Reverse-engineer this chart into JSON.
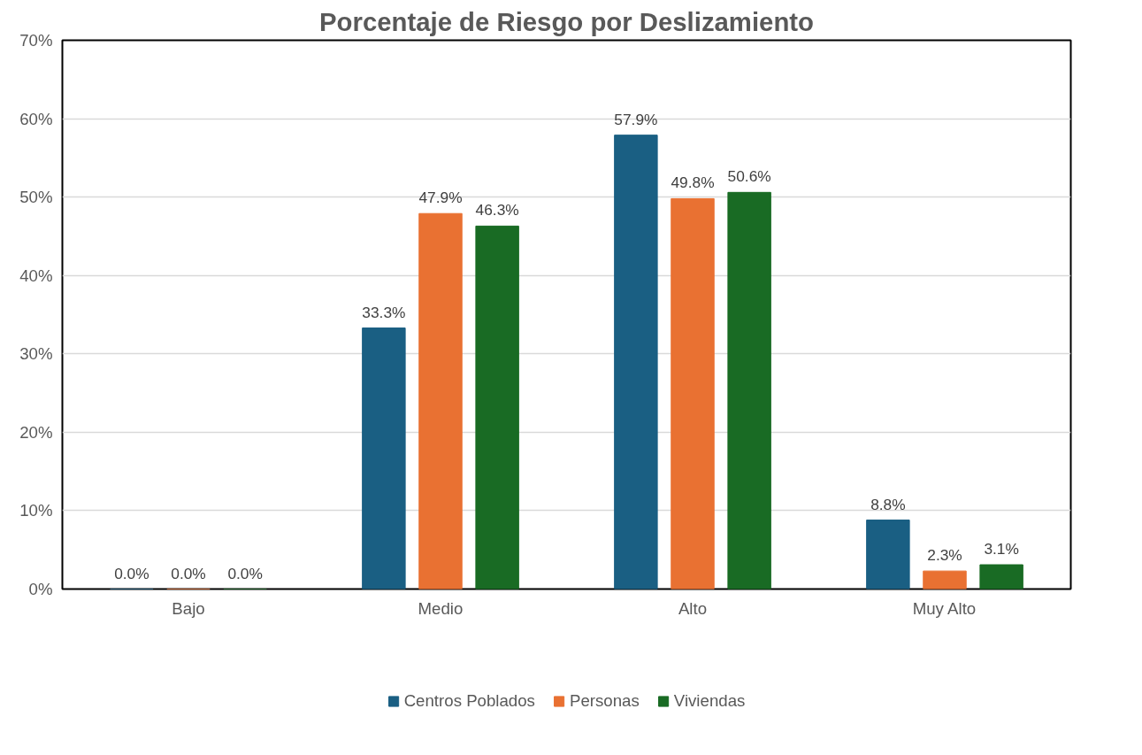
{
  "chart_data": {
    "type": "bar",
    "title": "Porcentaje de Riesgo por Deslizamiento",
    "categories": [
      "Bajo",
      "Medio",
      "Alto",
      "Muy Alto"
    ],
    "series": [
      {
        "name": "Centros Poblados",
        "color": "#1a5f83",
        "values": [
          0.0,
          33.3,
          57.9,
          8.8
        ],
        "value_labels": [
          "0.0%",
          "33.3%",
          "57.9%",
          "8.8%"
        ]
      },
      {
        "name": "Personas",
        "color": "#e97132",
        "values": [
          0.0,
          47.9,
          49.8,
          2.3
        ],
        "value_labels": [
          "0.0%",
          "47.9%",
          "49.8%",
          "2.3%"
        ]
      },
      {
        "name": "Viviendas",
        "color": "#196b24",
        "values": [
          0.0,
          46.3,
          50.6,
          3.1
        ],
        "value_labels": [
          "0.0%",
          "46.3%",
          "50.6%",
          "3.1%"
        ]
      }
    ],
    "ylim": [
      0,
      70
    ],
    "yticks": [
      {
        "value": 0,
        "label": "0%"
      },
      {
        "value": 10,
        "label": "10%"
      },
      {
        "value": 20,
        "label": "20%"
      },
      {
        "value": 30,
        "label": "30%"
      },
      {
        "value": 40,
        "label": "40%"
      },
      {
        "value": 50,
        "label": "50%"
      },
      {
        "value": 60,
        "label": "60%"
      },
      {
        "value": 70,
        "label": "70%"
      }
    ],
    "grid": "y",
    "legend": "bottom"
  }
}
